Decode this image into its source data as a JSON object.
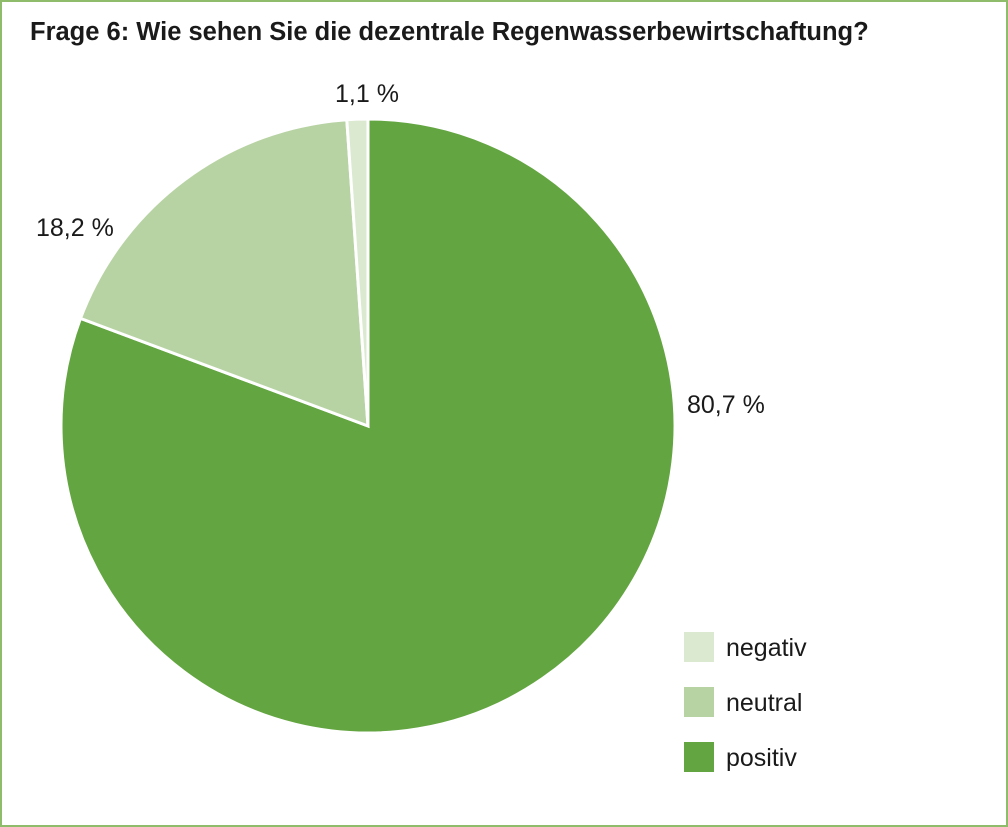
{
  "chart_data": {
    "type": "pie",
    "title": "Frage 6: Wie sehen Sie die dezentrale Regenwasserbewirtschaftung?",
    "slices": [
      {
        "name": "positiv",
        "value": 80.7,
        "label": "80,7 %",
        "color": "#63a541"
      },
      {
        "name": "neutral",
        "value": 18.2,
        "label": "18,2 %",
        "color": "#b7d3a3"
      },
      {
        "name": "negativ",
        "value": 1.1,
        "label": "1,1 %",
        "color": "#dbe9d0"
      }
    ],
    "legend": {
      "position": "bottom-right",
      "items": [
        {
          "name": "negativ",
          "color": "#dbe9d0"
        },
        {
          "name": "neutral",
          "color": "#b7d3a3"
        },
        {
          "name": "positiv",
          "color": "#63a541"
        }
      ]
    },
    "start_angle": "12 o'clock",
    "direction": "clockwise"
  }
}
